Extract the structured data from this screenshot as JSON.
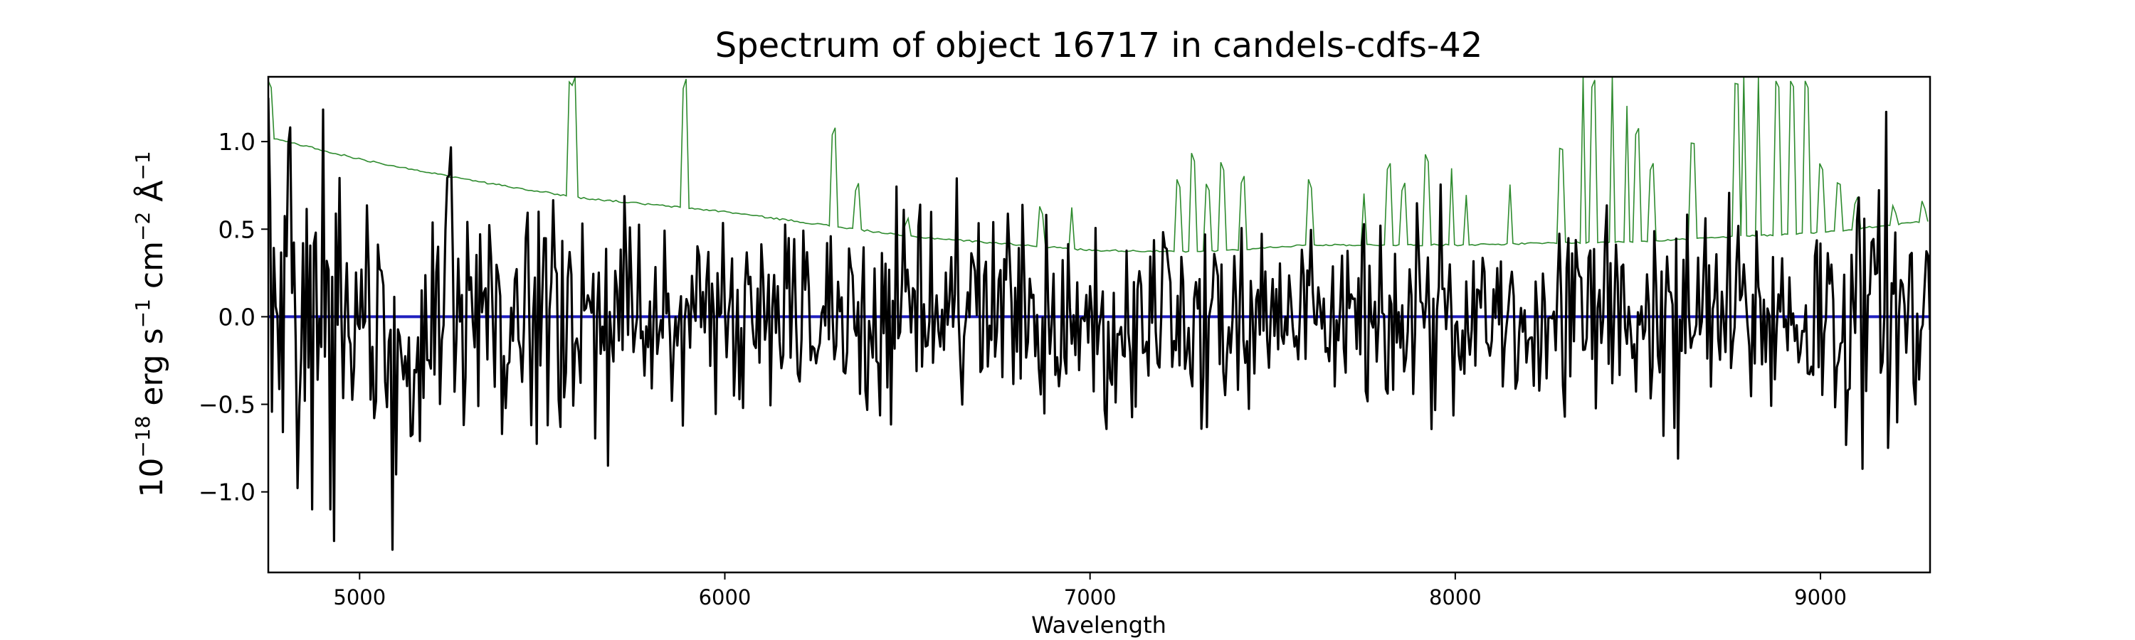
{
  "chart_data": {
    "type": "line",
    "title": "Spectrum of object 16717 in candels-cdfs-42",
    "xlabel": "Wavelength",
    "ylabel_parts": {
      "base": "10",
      "exp": "−18",
      "unit": "erg s",
      "s_exp": "−1",
      "cm": "cm",
      "cm_exp": "−2",
      "angstrom": "Å",
      "a_exp": "−1"
    },
    "xlim": [
      4750,
      9300
    ],
    "ylim": [
      -1.46,
      1.37
    ],
    "xticks": [
      5000,
      6000,
      7000,
      8000,
      9000
    ],
    "xtick_labels": [
      "5000",
      "6000",
      "7000",
      "8000",
      "9000"
    ],
    "yticks": [
      -1.0,
      -0.5,
      0.0,
      0.5,
      1.0
    ],
    "ytick_labels": [
      "−1.0",
      "−0.5",
      "0.0",
      "0.5",
      "1.0"
    ],
    "grid": false,
    "series": [
      {
        "role": "sky",
        "color": "#2e8b2e",
        "sample_step": 8,
        "x_start": 4750,
        "x_end": 9300,
        "baseline_knots": [
          [
            4750,
            1.02
          ],
          [
            4800,
            1.0
          ],
          [
            5000,
            0.9
          ],
          [
            5300,
            0.78
          ],
          [
            5600,
            0.68
          ],
          [
            6000,
            0.6
          ],
          [
            6500,
            0.46
          ],
          [
            7000,
            0.38
          ],
          [
            7300,
            0.37
          ],
          [
            7600,
            0.41
          ],
          [
            8000,
            0.41
          ],
          [
            8500,
            0.43
          ],
          [
            9000,
            0.48
          ],
          [
            9300,
            0.55
          ]
        ],
        "emission_lines": [
          [
            4752,
            1.37
          ],
          [
            5577,
            1.37
          ],
          [
            5590,
            1.37
          ],
          [
            5893,
            1.37
          ],
          [
            6300,
            1.1
          ],
          [
            6364,
            0.78
          ],
          [
            6500,
            0.58
          ],
          [
            6864,
            0.65
          ],
          [
            6950,
            0.62
          ],
          [
            7240,
            0.8
          ],
          [
            7280,
            0.95
          ],
          [
            7320,
            0.78
          ],
          [
            7360,
            0.9
          ],
          [
            7420,
            0.82
          ],
          [
            7600,
            0.8
          ],
          [
            7750,
            0.7
          ],
          [
            7820,
            0.9
          ],
          [
            7860,
            0.78
          ],
          [
            7920,
            0.95
          ],
          [
            7990,
            0.85
          ],
          [
            8030,
            0.7
          ],
          [
            8150,
            0.75
          ],
          [
            8290,
            1.0
          ],
          [
            8350,
            1.37
          ],
          [
            8380,
            1.37
          ],
          [
            8430,
            1.37
          ],
          [
            8470,
            1.2
          ],
          [
            8500,
            1.1
          ],
          [
            8540,
            0.9
          ],
          [
            8650,
            1.03
          ],
          [
            8770,
            1.37
          ],
          [
            8790,
            1.37
          ],
          [
            8830,
            1.37
          ],
          [
            8880,
            1.37
          ],
          [
            8920,
            1.37
          ],
          [
            8960,
            1.37
          ],
          [
            9000,
            0.9
          ],
          [
            9050,
            0.8
          ],
          [
            9100,
            0.7
          ],
          [
            9200,
            0.65
          ],
          [
            9280,
            0.68
          ]
        ]
      },
      {
        "role": "flux",
        "color": "#000000",
        "sample_step": 5,
        "x_start": 4750,
        "x_end": 9300,
        "noise_knots": [
          [
            4750,
            0.6
          ],
          [
            5100,
            0.5
          ],
          [
            5500,
            0.35
          ],
          [
            6000,
            0.3
          ],
          [
            7000,
            0.27
          ],
          [
            8000,
            0.28
          ],
          [
            9000,
            0.32
          ],
          [
            9300,
            0.35
          ]
        ],
        "spikes": [
          [
            4752,
            1.25
          ],
          [
            4870,
            -1.1
          ],
          [
            4920,
            -1.1
          ],
          [
            4930,
            -1.28
          ],
          [
            5090,
            -1.33
          ],
          [
            5100,
            -0.9
          ],
          [
            5680,
            -0.85
          ],
          [
            7320,
            -0.63
          ],
          [
            8610,
            -0.81
          ],
          [
            9180,
            1.17
          ],
          [
            9260,
            -0.5
          ]
        ]
      },
      {
        "role": "zero",
        "color": "#1f1fbf",
        "x": [
          4750,
          9300
        ],
        "y": [
          0.0,
          0.0
        ]
      }
    ]
  }
}
